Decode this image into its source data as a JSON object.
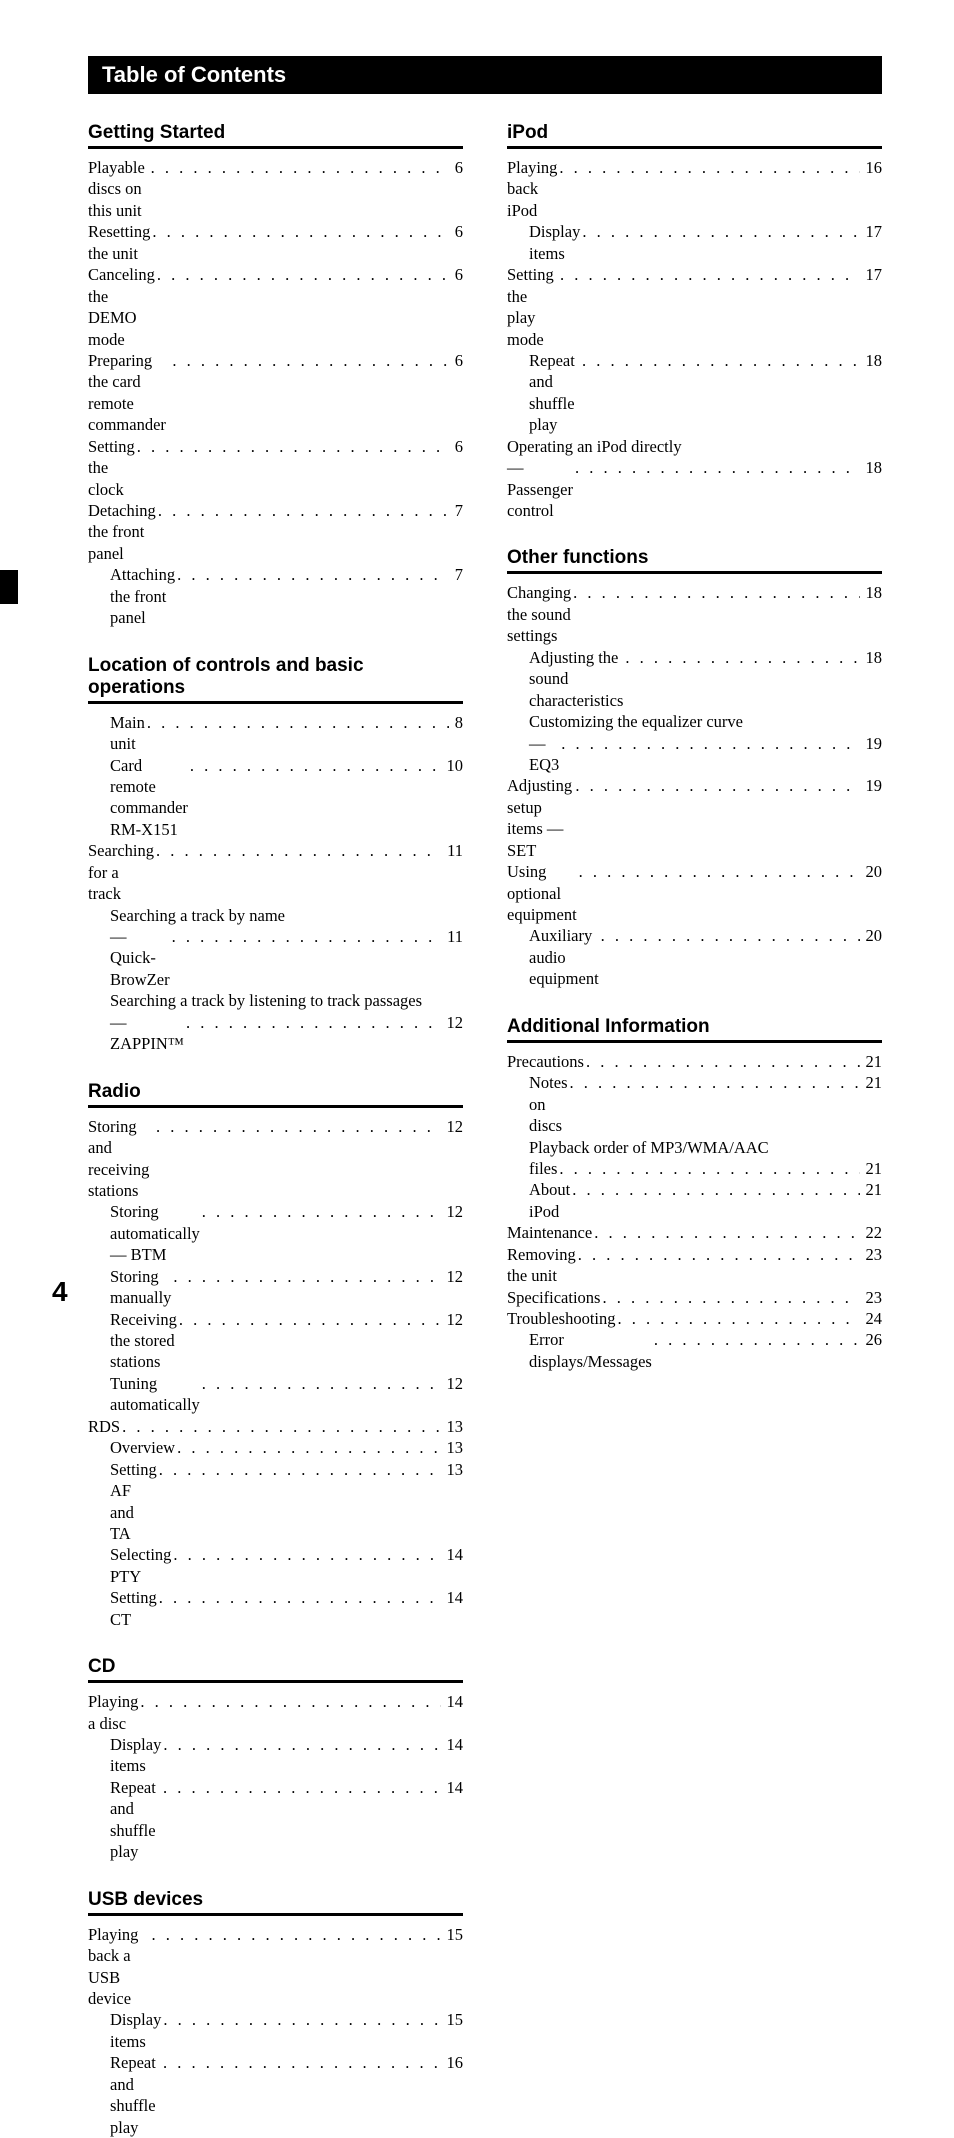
{
  "title": "Table of Contents",
  "page_number": "4",
  "left_sections": [
    {
      "heading": "Getting Started",
      "entries": [
        {
          "lvl": 1,
          "label": "Playable discs on this unit",
          "page": "6"
        },
        {
          "lvl": 1,
          "label": "Resetting the unit",
          "page": "6"
        },
        {
          "lvl": 1,
          "label": "Canceling the DEMO mode",
          "page": "6"
        },
        {
          "lvl": 1,
          "label": "Preparing the card remote commander",
          "page": "6"
        },
        {
          "lvl": 1,
          "label": "Setting the clock",
          "page": "6"
        },
        {
          "lvl": 1,
          "label": "Detaching the front panel",
          "page": "7"
        },
        {
          "lvl": 2,
          "label": "Attaching the front panel",
          "page": "7"
        }
      ]
    },
    {
      "heading": "Location of controls and basic operations",
      "entries": [
        {
          "lvl": 2,
          "label": "Main unit",
          "page": "8"
        },
        {
          "lvl": 2,
          "label": "Card remote commander RM-X151",
          "page": "10"
        },
        {
          "lvl": 1,
          "label": "Searching for a track",
          "page": "11"
        },
        {
          "lvl": 2,
          "label": "Searching a track by name"
        },
        {
          "lvl": 2,
          "label": "— Quick-BrowZer",
          "page": "11"
        },
        {
          "lvl": 2,
          "label": "Searching a track by listening to track passages"
        },
        {
          "lvl": 2,
          "label": "— ZAPPIN™",
          "page": "12"
        }
      ]
    },
    {
      "heading": "Radio",
      "entries": [
        {
          "lvl": 1,
          "label": "Storing and receiving stations",
          "page": "12"
        },
        {
          "lvl": 2,
          "label": "Storing automatically — BTM",
          "page": "12"
        },
        {
          "lvl": 2,
          "label": "Storing manually",
          "page": "12"
        },
        {
          "lvl": 2,
          "label": "Receiving the stored stations",
          "page": "12"
        },
        {
          "lvl": 2,
          "label": "Tuning automatically",
          "page": "12"
        },
        {
          "lvl": 1,
          "label": "RDS",
          "page": "13"
        },
        {
          "lvl": 2,
          "label": "Overview",
          "page": "13"
        },
        {
          "lvl": 2,
          "label": "Setting AF and TA",
          "page": "13"
        },
        {
          "lvl": 2,
          "label": "Selecting PTY",
          "page": "14"
        },
        {
          "lvl": 2,
          "label": "Setting CT",
          "page": "14"
        }
      ]
    },
    {
      "heading": "CD",
      "entries": [
        {
          "lvl": 1,
          "label": "Playing a disc",
          "page": "14"
        },
        {
          "lvl": 2,
          "label": "Display items",
          "page": "14"
        },
        {
          "lvl": 2,
          "label": "Repeat and shuffle play",
          "page": "14"
        }
      ]
    },
    {
      "heading": "USB devices",
      "entries": [
        {
          "lvl": 1,
          "label": "Playing back a USB device",
          "page": "15"
        },
        {
          "lvl": 2,
          "label": "Display items",
          "page": "15"
        },
        {
          "lvl": 2,
          "label": "Repeat and shuffle play",
          "page": "16"
        }
      ]
    }
  ],
  "right_sections": [
    {
      "heading": "iPod",
      "entries": [
        {
          "lvl": 1,
          "label": "Playing back iPod",
          "page": "16"
        },
        {
          "lvl": 2,
          "label": "Display items",
          "page": "17"
        },
        {
          "lvl": 1,
          "label": "Setting the play mode",
          "page": "17"
        },
        {
          "lvl": 2,
          "label": "Repeat and shuffle play",
          "page": "18"
        },
        {
          "lvl": 1,
          "label": "Operating an iPod directly"
        },
        {
          "lvl": 1,
          "label": "— Passenger control",
          "page": "18"
        }
      ]
    },
    {
      "heading": "Other functions",
      "entries": [
        {
          "lvl": 1,
          "label": "Changing the sound settings",
          "page": "18"
        },
        {
          "lvl": 2,
          "label": "Adjusting the sound characteristics",
          "page": "18"
        },
        {
          "lvl": 2,
          "label": "Customizing the equalizer curve"
        },
        {
          "lvl": 2,
          "label": "— EQ3",
          "page": "19"
        },
        {
          "lvl": 1,
          "label": "Adjusting setup items — SET",
          "page": "19"
        },
        {
          "lvl": 1,
          "label": "Using optional equipment",
          "page": "20"
        },
        {
          "lvl": 2,
          "label": "Auxiliary audio equipment",
          "page": "20"
        }
      ]
    },
    {
      "heading": "Additional Information",
      "entries": [
        {
          "lvl": 1,
          "label": "Precautions",
          "page": "21"
        },
        {
          "lvl": 2,
          "label": "Notes on discs",
          "page": "21"
        },
        {
          "lvl": 2,
          "label": "Playback order of MP3/WMA/AAC"
        },
        {
          "lvl": 2,
          "label": "files",
          "page": "21"
        },
        {
          "lvl": 2,
          "label": "About iPod",
          "page": "21"
        },
        {
          "lvl": 1,
          "label": "Maintenance",
          "page": "22"
        },
        {
          "lvl": 1,
          "label": "Removing the unit",
          "page": "23"
        },
        {
          "lvl": 1,
          "label": "Specifications",
          "page": "23"
        },
        {
          "lvl": 1,
          "label": "Troubleshooting",
          "page": "24"
        },
        {
          "lvl": 2,
          "label": "Error displays/Messages",
          "page": "26"
        }
      ]
    }
  ]
}
